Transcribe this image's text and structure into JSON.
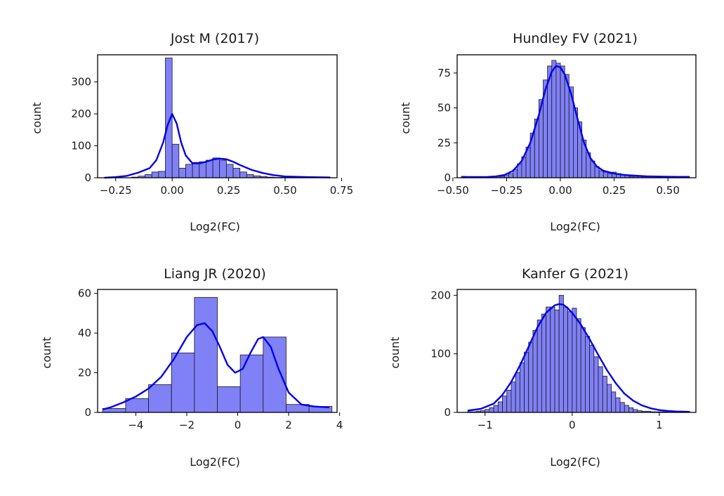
{
  "chart_data": [
    {
      "type": "histogram",
      "title": "Jost M (2017)",
      "xlabel": "Log2(FC)",
      "ylabel": "count",
      "xlim": [
        -0.33,
        0.73
      ],
      "ylim": [
        0,
        385
      ],
      "xticks": [
        -0.25,
        0.0,
        0.25,
        0.5,
        0.75
      ],
      "xtick_labels": [
        "−0.25",
        "0.00",
        "0.25",
        "0.50",
        "0.75"
      ],
      "yticks": [
        0,
        100,
        200,
        300
      ],
      "ytick_labels": [
        "0",
        "100",
        "200",
        "300"
      ],
      "bin_edges": [
        -0.3,
        -0.27,
        -0.24,
        -0.21,
        -0.18,
        -0.15,
        -0.12,
        -0.09,
        -0.06,
        -0.03,
        0.0,
        0.03,
        0.06,
        0.09,
        0.12,
        0.15,
        0.18,
        0.21,
        0.24,
        0.27,
        0.3,
        0.33,
        0.36,
        0.39,
        0.42,
        0.45,
        0.48,
        0.51,
        0.54,
        0.57,
        0.6,
        0.63,
        0.66,
        0.69
      ],
      "counts": [
        0,
        0,
        0,
        0,
        2,
        5,
        10,
        18,
        20,
        375,
        105,
        30,
        42,
        48,
        50,
        55,
        62,
        55,
        42,
        30,
        18,
        10,
        6,
        4,
        2,
        1,
        1,
        1,
        0,
        0,
        0,
        1,
        1
      ],
      "kde": {
        "x": [
          -0.3,
          -0.25,
          -0.2,
          -0.15,
          -0.1,
          -0.07,
          -0.04,
          -0.02,
          0.0,
          0.02,
          0.04,
          0.06,
          0.09,
          0.12,
          0.15,
          0.18,
          0.21,
          0.24,
          0.27,
          0.3,
          0.35,
          0.4,
          0.45,
          0.5,
          0.6,
          0.7
        ],
        "y": [
          0,
          2,
          6,
          16,
          30,
          55,
          110,
          165,
          200,
          170,
          110,
          70,
          45,
          45,
          50,
          57,
          60,
          58,
          50,
          40,
          25,
          15,
          8,
          4,
          2,
          1
        ]
      }
    },
    {
      "type": "histogram",
      "title": "Hundley FV (2021)",
      "xlabel": "Log2(FC)",
      "ylabel": "count",
      "xlim": [
        -0.48,
        0.63
      ],
      "ylim": [
        0,
        88
      ],
      "xticks": [
        -0.5,
        -0.25,
        0.0,
        0.25,
        0.5
      ],
      "xtick_labels": [
        "−0.50",
        "−0.25",
        "0.00",
        "0.25",
        "0.50"
      ],
      "yticks": [
        0,
        25,
        50,
        75
      ],
      "ytick_labels": [
        "0",
        "25",
        "50",
        "75"
      ],
      "bin_edges": [
        -0.46,
        -0.44,
        -0.42,
        -0.4,
        -0.38,
        -0.36,
        -0.34,
        -0.32,
        -0.3,
        -0.28,
        -0.26,
        -0.24,
        -0.22,
        -0.2,
        -0.18,
        -0.16,
        -0.14,
        -0.12,
        -0.1,
        -0.08,
        -0.06,
        -0.04,
        -0.02,
        0.0,
        0.02,
        0.04,
        0.06,
        0.08,
        0.1,
        0.12,
        0.14,
        0.16,
        0.18,
        0.2,
        0.22,
        0.24,
        0.26,
        0.28,
        0.3,
        0.32,
        0.34,
        0.36,
        0.38,
        0.4,
        0.42,
        0.44,
        0.46,
        0.48,
        0.5,
        0.52,
        0.54,
        0.56,
        0.58,
        0.6
      ],
      "counts": [
        1,
        0,
        0,
        0,
        0,
        0,
        0,
        0,
        1,
        1,
        2,
        3,
        6,
        10,
        15,
        22,
        32,
        42,
        56,
        70,
        80,
        84,
        82,
        80,
        74,
        65,
        50,
        40,
        27,
        18,
        12,
        8,
        5,
        4,
        3,
        4,
        3,
        2,
        2,
        1,
        1,
        1,
        1,
        1,
        0,
        1,
        0,
        0,
        0,
        0,
        0,
        1,
        1
      ],
      "kde": {
        "x": [
          -0.46,
          -0.4,
          -0.35,
          -0.3,
          -0.26,
          -0.22,
          -0.18,
          -0.14,
          -0.1,
          -0.07,
          -0.04,
          -0.02,
          0.0,
          0.02,
          0.05,
          0.08,
          0.11,
          0.14,
          0.17,
          0.2,
          0.25,
          0.3,
          0.35,
          0.4,
          0.5,
          0.6
        ],
        "y": [
          0.5,
          0.5,
          0.5,
          1,
          2,
          5,
          12,
          25,
          45,
          63,
          76,
          80,
          79,
          74,
          60,
          42,
          25,
          14,
          8,
          5,
          3,
          2,
          1.5,
          1,
          0.7,
          0.5
        ]
      }
    },
    {
      "type": "histogram",
      "title": "Liang JR (2020)",
      "xlabel": "Log2(FC)",
      "ylabel": "count",
      "xlim": [
        -5.5,
        3.9
      ],
      "ylim": [
        0,
        62
      ],
      "xticks": [
        -4,
        -2,
        0,
        2,
        4
      ],
      "xtick_labels": [
        "−4",
        "−2",
        "0",
        "2",
        "4"
      ],
      "yticks": [
        0,
        20,
        40,
        60
      ],
      "ytick_labels": [
        "0",
        "20",
        "40",
        "60"
      ],
      "bin_edges": [
        -5.3,
        -4.4,
        -3.5,
        -2.6,
        -1.7,
        -0.8,
        0.1,
        1.0,
        1.9,
        2.8,
        3.7
      ],
      "counts": [
        2,
        7,
        14,
        30,
        58,
        13,
        29,
        38,
        4,
        3
      ],
      "kde": {
        "x": [
          -5.3,
          -5.0,
          -4.5,
          -4.0,
          -3.5,
          -3.0,
          -2.5,
          -2.0,
          -1.6,
          -1.3,
          -1.0,
          -0.7,
          -0.4,
          -0.1,
          0.2,
          0.5,
          0.8,
          1.0,
          1.3,
          1.6,
          2.0,
          2.5,
          3.0,
          3.6
        ],
        "y": [
          1.5,
          2.5,
          5,
          8,
          12,
          18,
          27,
          38,
          44,
          45,
          41,
          33,
          24,
          20,
          22,
          30,
          37,
          38,
          33,
          22,
          10,
          4,
          3,
          2.5
        ]
      }
    },
    {
      "type": "histogram",
      "title": "Kanfer G (2021)",
      "xlabel": "Log2(FC)",
      "ylabel": "count",
      "xlim": [
        -1.32,
        1.42
      ],
      "ylim": [
        0,
        210
      ],
      "xticks": [
        -1,
        0,
        1
      ],
      "xtick_labels": [
        "−1",
        "0",
        "1"
      ],
      "yticks": [
        0,
        100,
        200
      ],
      "ytick_labels": [
        "0",
        "100",
        "200"
      ],
      "bin_edges": [
        -1.2,
        -1.15,
        -1.1,
        -1.05,
        -1.0,
        -0.95,
        -0.9,
        -0.85,
        -0.8,
        -0.75,
        -0.7,
        -0.65,
        -0.6,
        -0.55,
        -0.5,
        -0.45,
        -0.4,
        -0.35,
        -0.3,
        -0.25,
        -0.2,
        -0.15,
        -0.1,
        -0.05,
        0.0,
        0.05,
        0.1,
        0.15,
        0.2,
        0.25,
        0.3,
        0.35,
        0.4,
        0.45,
        0.5,
        0.55,
        0.6,
        0.65,
        0.7,
        0.75,
        0.8,
        0.85,
        0.9,
        0.95,
        1.0,
        1.05,
        1.1,
        1.15,
        1.2,
        1.25,
        1.3,
        1.35
      ],
      "counts": [
        1,
        1,
        2,
        3,
        5,
        8,
        12,
        18,
        28,
        38,
        52,
        68,
        85,
        103,
        120,
        140,
        158,
        168,
        180,
        180,
        175,
        200,
        180,
        172,
        178,
        160,
        145,
        130,
        115,
        95,
        78,
        62,
        48,
        35,
        25,
        17,
        12,
        8,
        5,
        3,
        2,
        2,
        1,
        1,
        1,
        1,
        0,
        0,
        0,
        1,
        1
      ],
      "kde": {
        "x": [
          -1.2,
          -1.05,
          -0.9,
          -0.8,
          -0.7,
          -0.6,
          -0.5,
          -0.4,
          -0.3,
          -0.2,
          -0.15,
          -0.1,
          -0.05,
          0.0,
          0.1,
          0.2,
          0.3,
          0.4,
          0.5,
          0.6,
          0.7,
          0.8,
          0.9,
          1.0,
          1.1,
          1.2,
          1.35
        ],
        "y": [
          3,
          6,
          15,
          30,
          52,
          80,
          112,
          145,
          170,
          183,
          185,
          184,
          178,
          170,
          150,
          125,
          98,
          72,
          50,
          32,
          20,
          12,
          7,
          4,
          2.5,
          1.5,
          1
        ]
      }
    }
  ],
  "colors": {
    "bar_fill": "#8080f7",
    "bar_edge": "#1a1a1a",
    "kde_line": "#0000ee",
    "axes": "#000000"
  }
}
